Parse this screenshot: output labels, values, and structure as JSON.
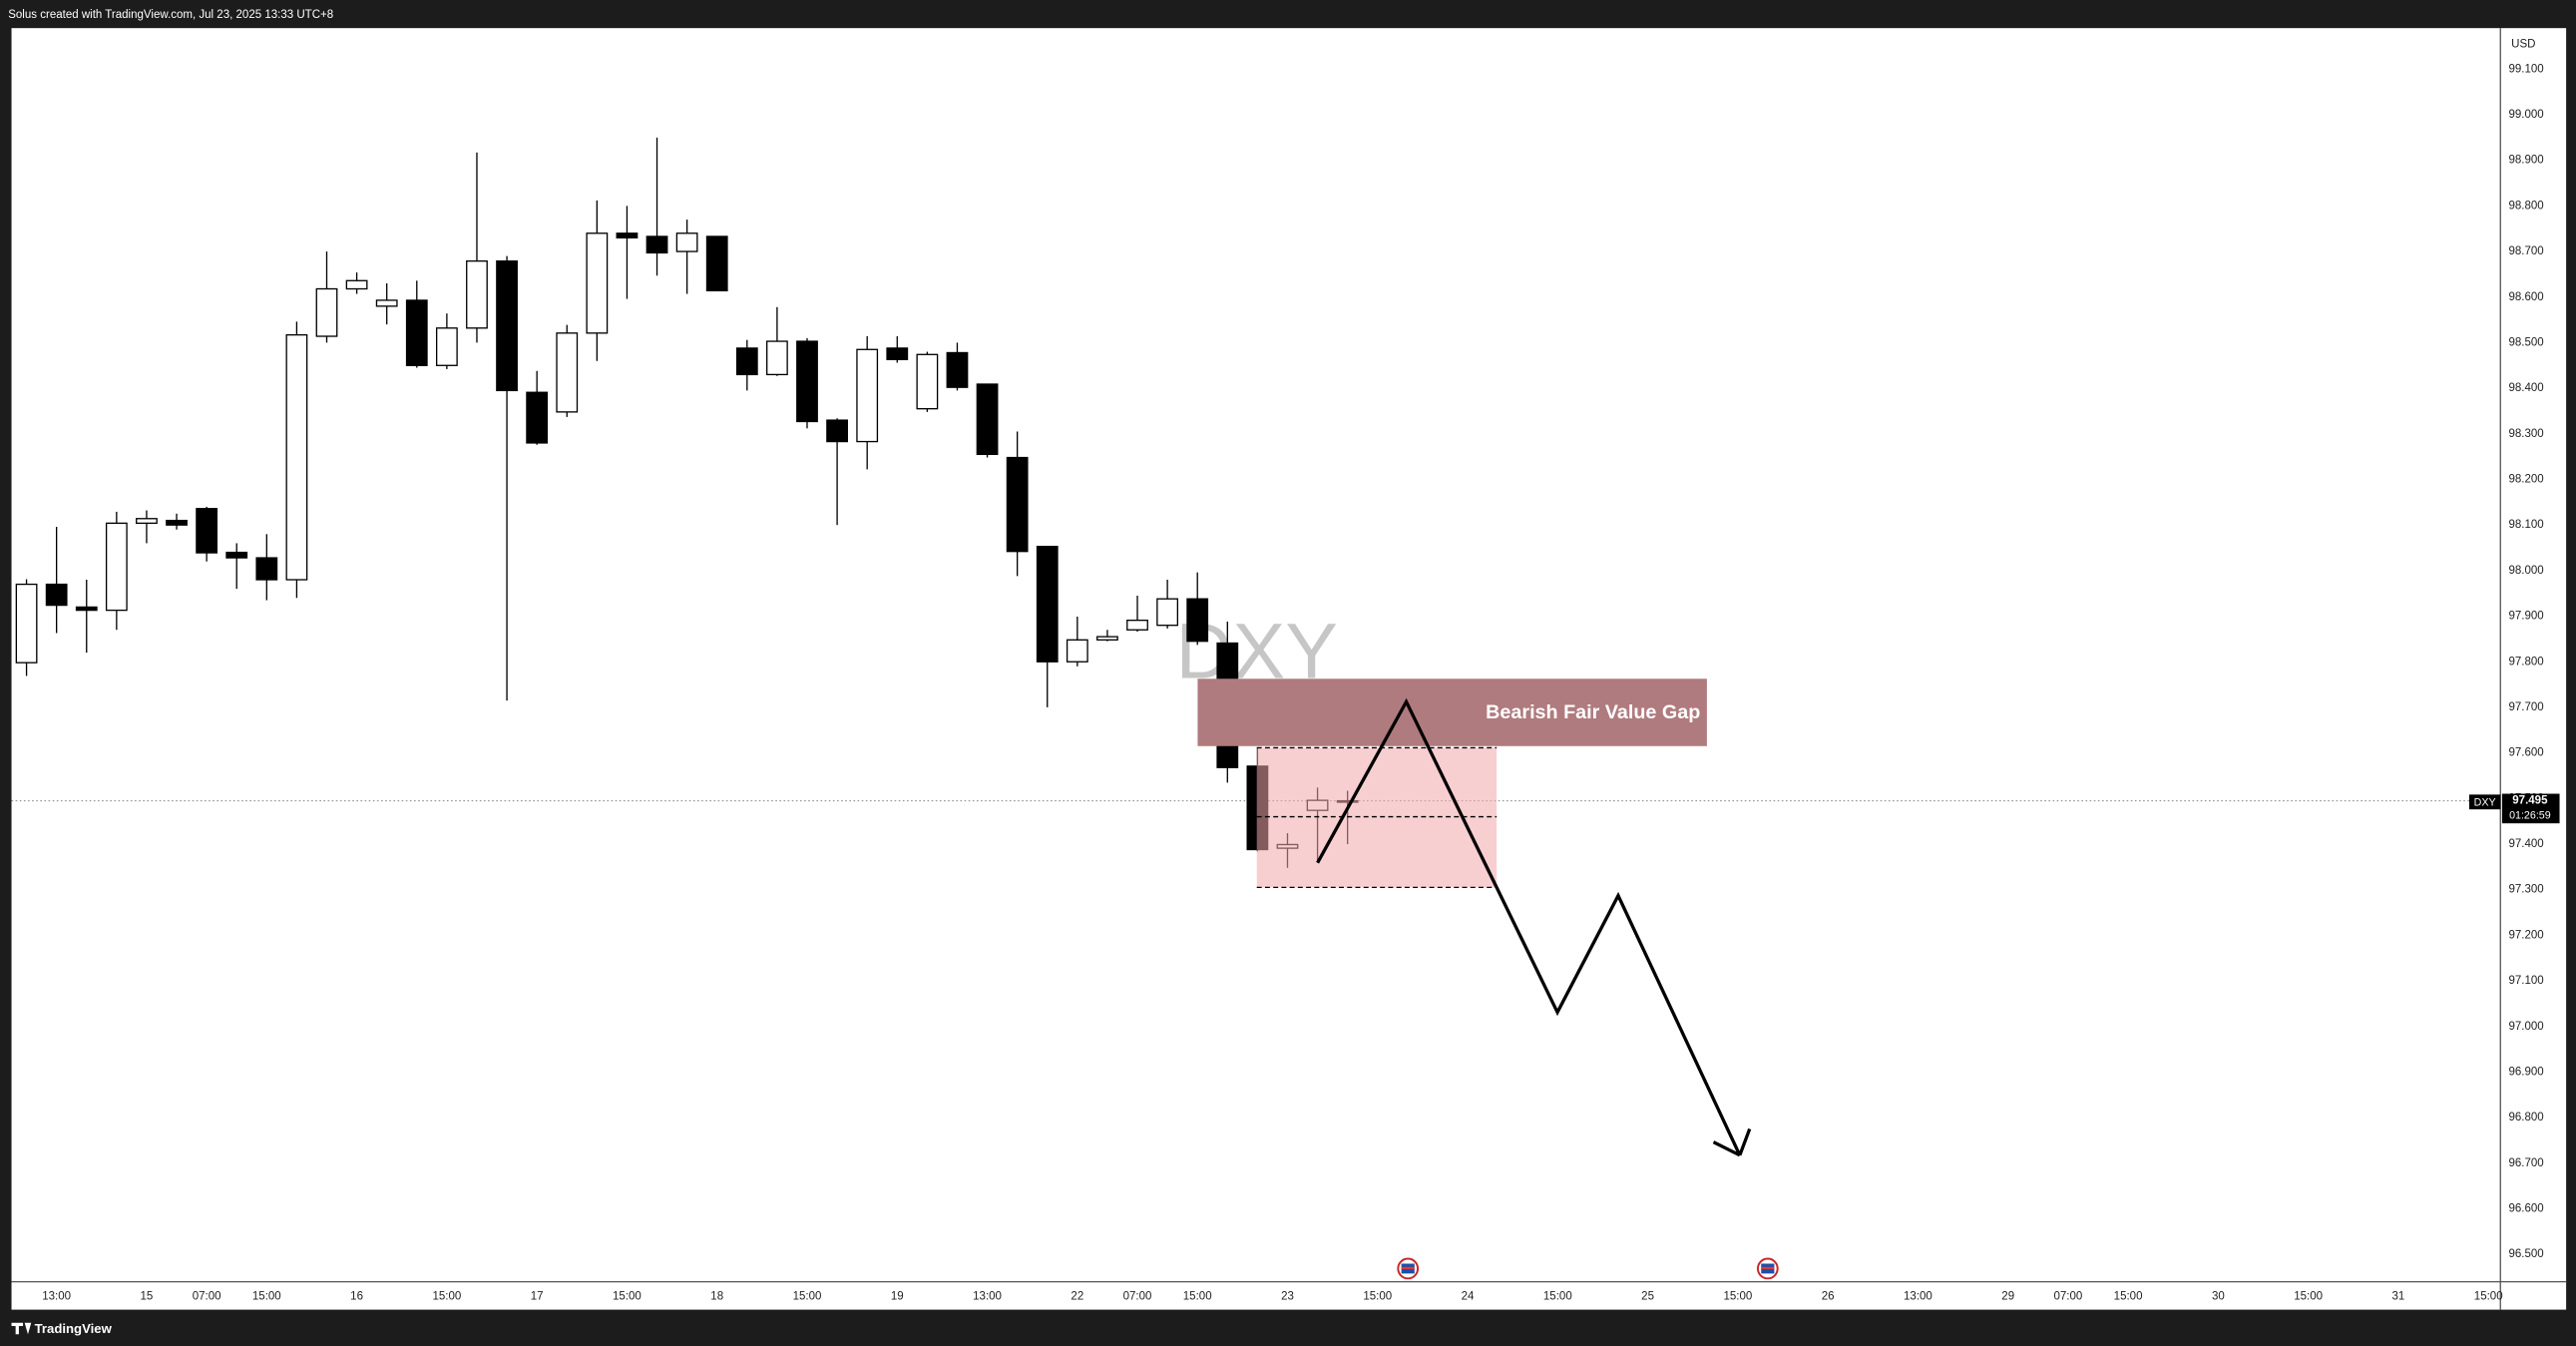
{
  "header": {
    "credit": "Solus created with TradingView.com, Jul 23, 2025 13:33 UTC+8"
  },
  "footer": {
    "brand": "TradingView"
  },
  "chart_data": {
    "type": "candlestick",
    "symbol": "DXY",
    "currency": "USD",
    "annotation": "Bearish Fair Value Gap",
    "last_price": 97.495,
    "countdown": "01:26:59",
    "up_color": "#ffffff",
    "down_color": "#000000",
    "border_color": "#000000",
    "grid": false,
    "xlim": [
      -0.5,
      82.4
    ],
    "ylim": [
      96.44,
      99.19
    ],
    "open": [
      97.798,
      97.97,
      97.92,
      97.913,
      98.104,
      98.11,
      98.136,
      98.04,
      98.028,
      97.98,
      98.514,
      98.618,
      98.58,
      98.593,
      98.45,
      98.532,
      98.679,
      98.391,
      98.348,
      98.521,
      98.74,
      98.733,
      98.7,
      98.733,
      98.488,
      98.43,
      98.503,
      98.33,
      98.283,
      98.488,
      98.355,
      98.478,
      98.409,
      98.248,
      98.053,
      97.8,
      97.848,
      97.87,
      97.88,
      97.938,
      97.841,
      97.571,
      97.391,
      97.474,
      97.492
    ],
    "high": [
      97.981,
      98.096,
      97.98,
      98.129,
      98.132,
      98.125,
      98.14,
      98.06,
      98.08,
      98.546,
      98.7,
      98.654,
      98.63,
      98.636,
      98.564,
      98.917,
      98.69,
      98.438,
      98.539,
      98.812,
      98.8,
      98.95,
      98.77,
      98.733,
      98.506,
      98.578,
      98.51,
      98.334,
      98.514,
      98.514,
      98.48,
      98.5,
      98.41,
      98.305,
      98.053,
      97.899,
      97.87,
      97.945,
      97.98,
      97.996,
      97.888,
      97.611,
      97.424,
      97.524,
      97.517
    ],
    "low": [
      97.769,
      97.863,
      97.82,
      97.87,
      98.06,
      98.09,
      98.02,
      97.96,
      97.935,
      97.94,
      98.5,
      98.607,
      98.54,
      98.445,
      98.442,
      98.5,
      97.715,
      98.276,
      98.337,
      98.46,
      98.596,
      98.647,
      98.607,
      98.614,
      98.395,
      98.427,
      98.312,
      98.1,
      98.222,
      98.456,
      98.348,
      98.395,
      98.248,
      97.988,
      97.7,
      97.79,
      97.845,
      97.866,
      97.873,
      97.837,
      97.535,
      97.384,
      97.348,
      97.359,
      97.4
    ],
    "close": [
      97.97,
      97.924,
      97.913,
      98.104,
      98.114,
      98.1,
      98.039,
      98.028,
      97.98,
      98.517,
      98.618,
      98.636,
      98.593,
      98.45,
      98.532,
      98.679,
      98.395,
      98.28,
      98.521,
      98.74,
      98.73,
      98.697,
      98.74,
      98.614,
      98.43,
      98.503,
      98.327,
      98.283,
      98.485,
      98.463,
      98.474,
      98.402,
      98.255,
      98.042,
      97.8,
      97.848,
      97.855,
      97.891,
      97.938,
      97.845,
      97.568,
      97.388,
      97.399,
      97.496,
      97.495
    ],
    "xticks": [
      {
        "value": 1,
        "label": "13:00"
      },
      {
        "value": 4,
        "label": "15"
      },
      {
        "value": 6,
        "label": "07:00"
      },
      {
        "value": 8,
        "label": "15:00"
      },
      {
        "value": 11,
        "label": "16"
      },
      {
        "value": 14,
        "label": "15:00"
      },
      {
        "value": 17,
        "label": "17"
      },
      {
        "value": 20,
        "label": "15:00"
      },
      {
        "value": 23,
        "label": "18"
      },
      {
        "value": 26,
        "label": "15:00"
      },
      {
        "value": 29,
        "label": "19"
      },
      {
        "value": 32,
        "label": "13:00"
      },
      {
        "value": 35,
        "label": "22"
      },
      {
        "value": 37,
        "label": "07:00"
      },
      {
        "value": 39,
        "label": "15:00"
      },
      {
        "value": 42,
        "label": "23"
      },
      {
        "value": 45,
        "label": "15:00"
      },
      {
        "value": 48,
        "label": "24"
      },
      {
        "value": 51,
        "label": "15:00"
      },
      {
        "value": 54,
        "label": "25"
      },
      {
        "value": 57,
        "label": "15:00"
      },
      {
        "value": 60,
        "label": "26"
      },
      {
        "value": 63,
        "label": "13:00"
      },
      {
        "value": 66,
        "label": "29"
      },
      {
        "value": 68,
        "label": "07:00"
      },
      {
        "value": 70,
        "label": "15:00"
      },
      {
        "value": 73,
        "label": "30"
      },
      {
        "value": 76,
        "label": "15:00"
      },
      {
        "value": 79,
        "label": "31"
      },
      {
        "value": 82,
        "label": "15:00"
      }
    ],
    "yticks": [
      {
        "value": 99.1,
        "label": "99.100"
      },
      {
        "value": 99.0,
        "label": "99.000"
      },
      {
        "value": 98.9,
        "label": "98.900"
      },
      {
        "value": 98.8,
        "label": "98.800"
      },
      {
        "value": 98.7,
        "label": "98.700"
      },
      {
        "value": 98.6,
        "label": "98.600"
      },
      {
        "value": 98.5,
        "label": "98.500"
      },
      {
        "value": 98.4,
        "label": "98.400"
      },
      {
        "value": 98.3,
        "label": "98.300"
      },
      {
        "value": 98.2,
        "label": "98.200"
      },
      {
        "value": 98.1,
        "label": "98.100"
      },
      {
        "value": 98.0,
        "label": "98.000"
      },
      {
        "value": 97.9,
        "label": "97.900"
      },
      {
        "value": 97.8,
        "label": "97.800"
      },
      {
        "value": 97.7,
        "label": "97.700"
      },
      {
        "value": 97.6,
        "label": "97.600"
      },
      {
        "value": 97.5,
        "label": "97.500"
      },
      {
        "value": 97.4,
        "label": "97.400"
      },
      {
        "value": 97.3,
        "label": "97.300"
      },
      {
        "value": 97.2,
        "label": "97.200"
      },
      {
        "value": 97.1,
        "label": "97.100"
      },
      {
        "value": 97.0,
        "label": "97.000"
      },
      {
        "value": 96.9,
        "label": "96.900"
      },
      {
        "value": 96.8,
        "label": "96.800"
      },
      {
        "value": 96.7,
        "label": "96.700"
      },
      {
        "value": 96.6,
        "label": "96.600"
      },
      {
        "value": 96.5,
        "label": "96.500"
      }
    ]
  }
}
